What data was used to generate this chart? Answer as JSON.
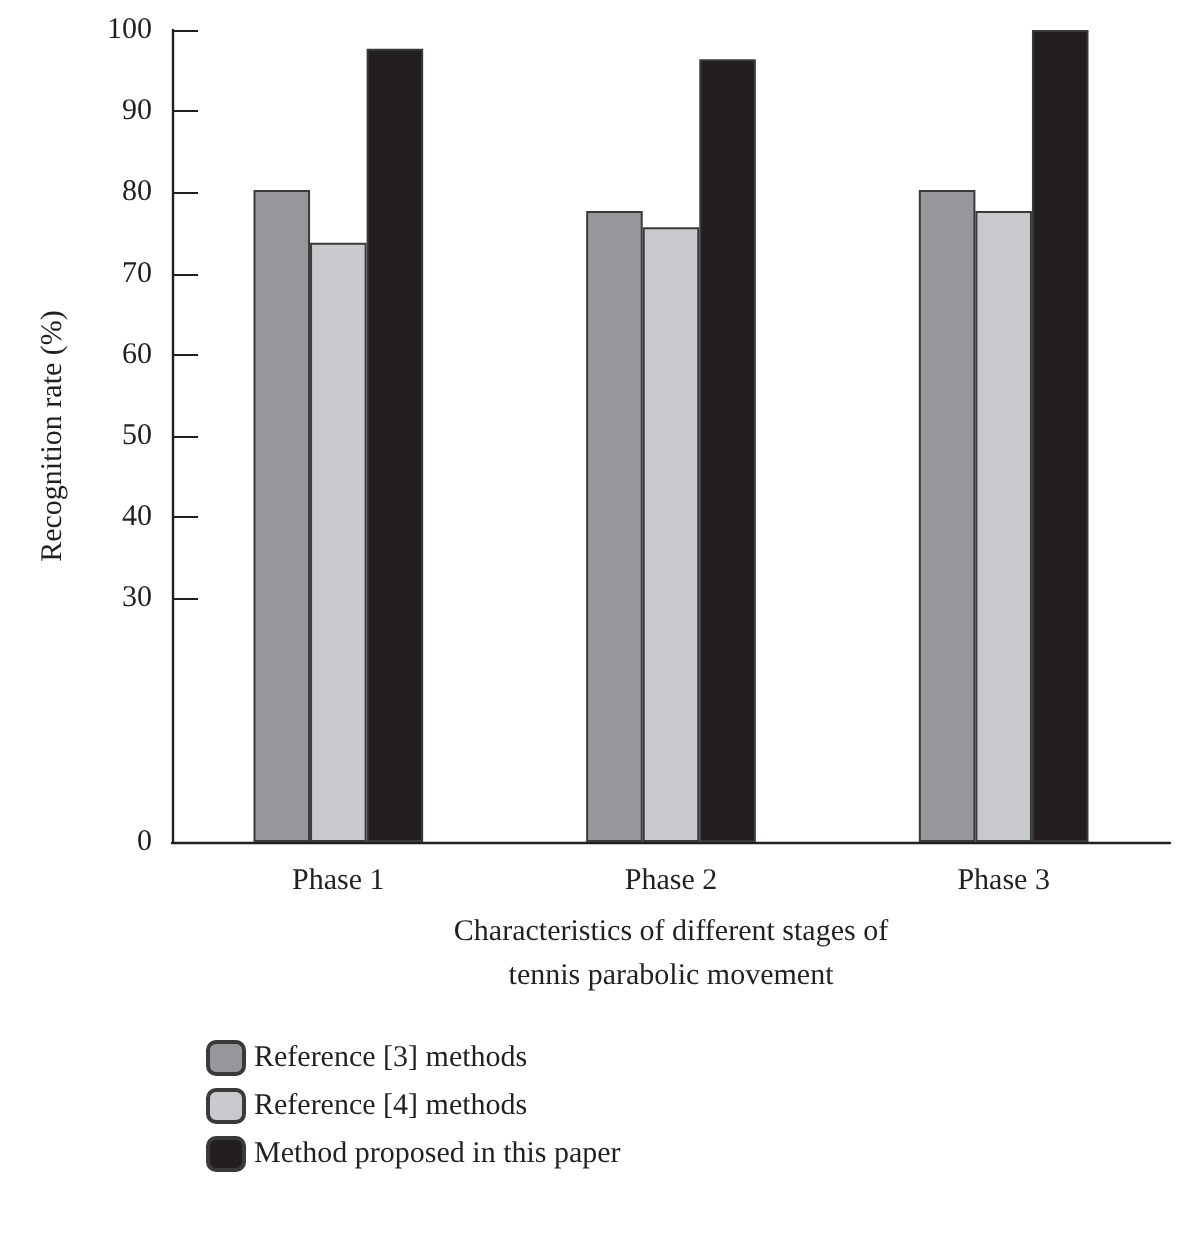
{
  "chart_data": {
    "type": "bar",
    "xlabel": "Characteristics of different stages of\ntennis parabolic movement",
    "ylabel": "Recognition rate (%)",
    "categories": [
      "Phase 1",
      "Phase 2",
      "Phase 3"
    ],
    "series": [
      {
        "name": "Reference [3] methods",
        "color": "#96979b",
        "values": [
          80.3,
          77.7,
          80.3
        ]
      },
      {
        "name": "Reference [4] methods",
        "color": "#c8c9cc",
        "values": [
          73.8,
          75.7,
          77.7
        ]
      },
      {
        "name": "Method proposed in this paper",
        "color": "#231f20",
        "values": [
          97.7,
          96.4,
          100
        ]
      }
    ],
    "ylim": [
      0,
      100
    ],
    "yticks": [
      0,
      30,
      40,
      50,
      60,
      70,
      80,
      90,
      100
    ],
    "grid": false,
    "legend": "bottom left"
  }
}
